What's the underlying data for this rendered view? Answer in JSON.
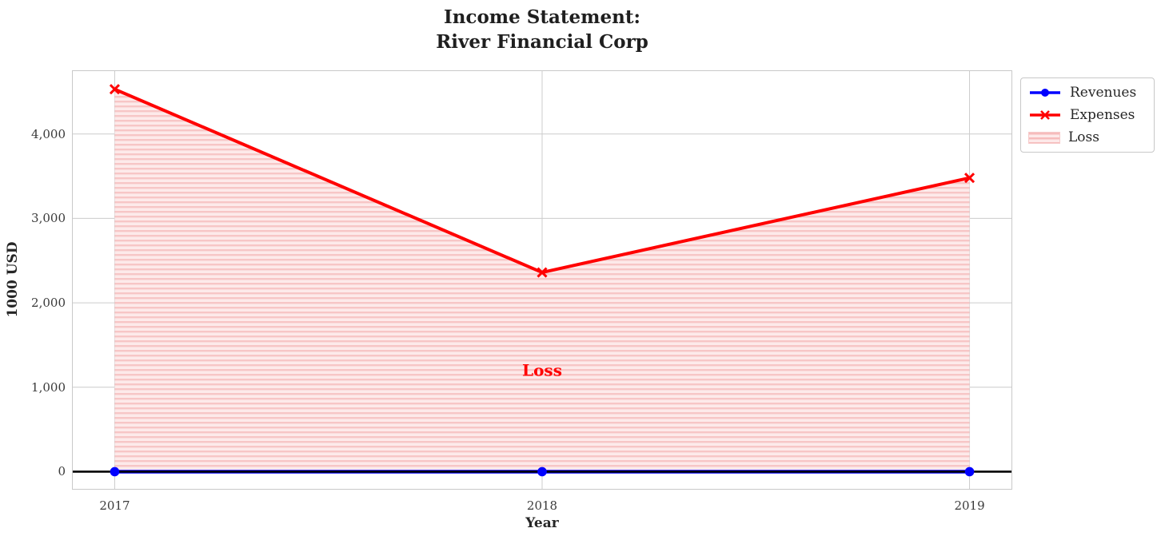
{
  "chart_data": {
    "type": "line",
    "title": "Income Statement:\nRiver Financial Corp",
    "xlabel": "Year",
    "ylabel": "1000 USD",
    "x": [
      2017,
      2018,
      2019
    ],
    "xtick_labels": [
      "2017",
      "2018",
      "2019"
    ],
    "yticks": [
      0,
      1000,
      2000,
      3000,
      4000
    ],
    "ytick_labels": [
      "0",
      "1,000",
      "2,000",
      "3,000",
      "4,000"
    ],
    "xlim": [
      2016.9,
      2019.1
    ],
    "ylim": [
      -213,
      4754
    ],
    "grid": true,
    "series": [
      {
        "name": "Revenues",
        "color": "#0000ff",
        "marker": "circle",
        "values": [
          0,
          0,
          0
        ]
      },
      {
        "name": "Expenses",
        "color": "#ff0000",
        "marker": "x",
        "values": [
          4530,
          2360,
          3480
        ]
      }
    ],
    "loss_fill": {
      "between": [
        "Expenses",
        "Revenues"
      ],
      "label": "Loss",
      "base_color": "#fdeaea",
      "hatch_color": "#f7c6c6",
      "hatch": "horizontal"
    },
    "annotation": {
      "text": "Loss",
      "x": 2018,
      "y": 1200,
      "color": "#ff0000"
    },
    "zero_line": {
      "y": 0,
      "color": "#000000"
    },
    "legend": {
      "position": "upper-right-outside",
      "entries": [
        "Revenues",
        "Expenses",
        "Loss"
      ]
    },
    "colors": {
      "grid": "#cccccc",
      "spine": "#c9c9c9",
      "title": "#1f1f1f",
      "tick": "#3a3a3a"
    }
  }
}
